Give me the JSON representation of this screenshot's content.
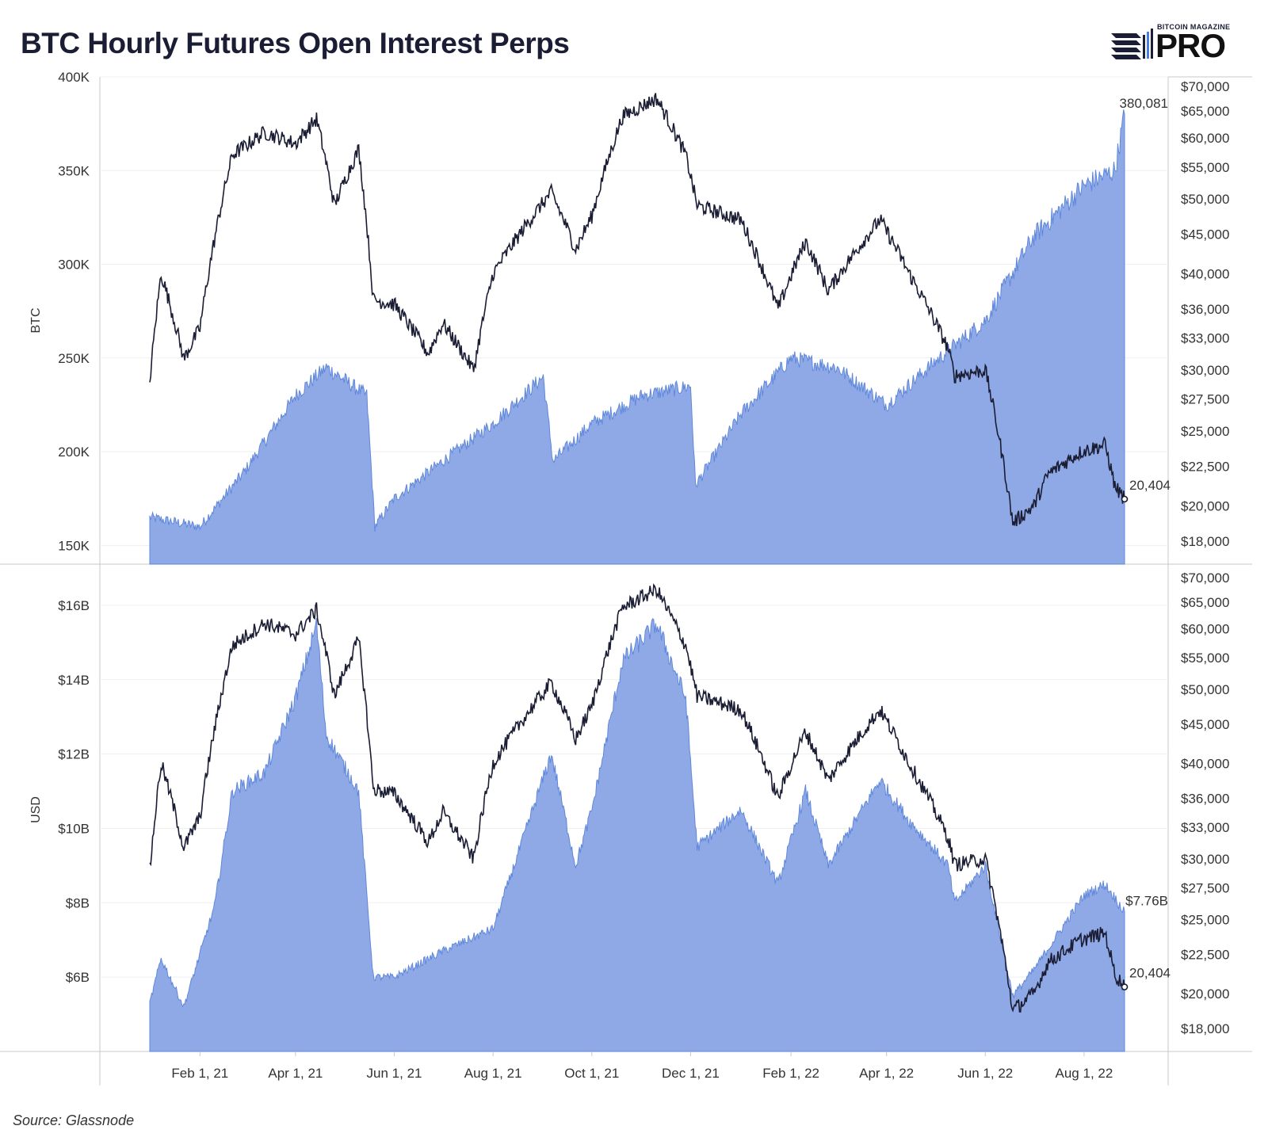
{
  "title": "BTC Hourly Futures Open Interest Perps",
  "logo": {
    "small": "BITCOIN MAGAZINE",
    "big": "PRO"
  },
  "source": "Source: Glassnode",
  "colors": {
    "fill": "#8fa9e6",
    "fill_edge": "#5f87db",
    "price_line": "#1a1d33",
    "accent": "#4a7fe0"
  },
  "chart_data": [
    {
      "type": "area",
      "panel": "top",
      "ylabel": "BTC",
      "ylim": [
        140000,
        400000
      ],
      "yticks": [
        "150K",
        "200K",
        "250K",
        "300K",
        "350K",
        "400K"
      ],
      "ytick_values": [
        150000,
        200000,
        250000,
        300000,
        350000,
        400000
      ],
      "x_date_range": [
        "2021-01-01",
        "2022-08-26"
      ],
      "series": [
        {
          "metric": "open_interest_btc",
          "x": [
            "2021-01-01",
            "2021-02-01",
            "2021-03-01",
            "2021-04-01",
            "2021-04-20",
            "2021-05-15",
            "2021-05-20",
            "2021-06-01",
            "2021-07-01",
            "2021-08-01",
            "2021-09-01",
            "2021-09-07",
            "2021-10-01",
            "2021-11-01",
            "2021-12-01",
            "2021-12-04",
            "2022-01-01",
            "2022-02-01",
            "2022-03-01",
            "2022-04-01",
            "2022-05-01",
            "2022-06-01",
            "2022-07-01",
            "2022-08-01",
            "2022-08-20",
            "2022-08-26"
          ],
          "values": [
            165000,
            160000,
            190000,
            230000,
            245000,
            230000,
            160000,
            175000,
            195000,
            215000,
            240000,
            195000,
            215000,
            230000,
            235000,
            182000,
            220000,
            250000,
            245000,
            225000,
            248000,
            270000,
            315000,
            342000,
            350000,
            380081
          ],
          "end_label": "380,081"
        },
        {
          "metric": "btc_price_usd",
          "y_axis": "right",
          "x": [
            "2021-01-01",
            "2021-01-08",
            "2021-01-22",
            "2021-02-01",
            "2021-02-21",
            "2021-03-13",
            "2021-04-01",
            "2021-04-14",
            "2021-04-25",
            "2021-05-10",
            "2021-05-19",
            "2021-06-01",
            "2021-06-22",
            "2021-07-01",
            "2021-07-20",
            "2021-08-01",
            "2021-09-06",
            "2021-09-21",
            "2021-10-01",
            "2021-10-20",
            "2021-11-10",
            "2021-11-28",
            "2021-12-05",
            "2022-01-01",
            "2022-01-24",
            "2022-02-10",
            "2022-02-24",
            "2022-03-28",
            "2022-04-15",
            "2022-05-09",
            "2022-05-13",
            "2022-06-01",
            "2022-06-18",
            "2022-07-01",
            "2022-07-10",
            "2022-07-30",
            "2022-08-14",
            "2022-08-20",
            "2022-08-26"
          ],
          "values": [
            29000,
            40000,
            31000,
            34000,
            57000,
            61000,
            59000,
            63500,
            49000,
            58000,
            37000,
            36500,
            31500,
            34500,
            30000,
            40000,
            51000,
            43000,
            47500,
            64000,
            67500,
            57000,
            49000,
            47000,
            36000,
            44000,
            38000,
            47000,
            40000,
            32000,
            29500,
            30000,
            19000,
            20000,
            22000,
            23500,
            24000,
            21200,
            20404
          ],
          "end_label": "20,404"
        }
      ],
      "right_yticks": [
        "$70,000",
        "$65,000",
        "$60,000",
        "$55,000",
        "$50,000",
        "$45,000",
        "$40,000",
        "$36,000",
        "$33,000",
        "$30,000",
        "$27,500",
        "$25,000",
        "$22,500",
        "$20,000",
        "$18,000"
      ],
      "right_ytick_values": [
        70000,
        65000,
        60000,
        55000,
        50000,
        45000,
        40000,
        36000,
        33000,
        30000,
        27500,
        25000,
        22500,
        20000,
        18000
      ],
      "right_ylim": [
        16800,
        72000
      ],
      "right_scale": "log"
    },
    {
      "type": "area",
      "panel": "bottom",
      "ylabel": "USD",
      "ylim": [
        4000000000,
        17000000000
      ],
      "yticks": [
        "$6B",
        "$8B",
        "$10B",
        "$12B",
        "$14B",
        "$16B"
      ],
      "ytick_values": [
        6000000000,
        8000000000,
        10000000000,
        12000000000,
        14000000000,
        16000000000
      ],
      "x_date_range": [
        "2021-01-01",
        "2022-08-26"
      ],
      "series": [
        {
          "metric": "open_interest_usd",
          "x": [
            "2021-01-01",
            "2021-01-08",
            "2021-01-22",
            "2021-02-10",
            "2021-02-21",
            "2021-03-13",
            "2021-04-01",
            "2021-04-14",
            "2021-04-20",
            "2021-05-10",
            "2021-05-19",
            "2021-06-01",
            "2021-07-01",
            "2021-08-01",
            "2021-09-06",
            "2021-09-21",
            "2021-10-01",
            "2021-10-20",
            "2021-11-10",
            "2021-11-28",
            "2021-12-05",
            "2022-01-01",
            "2022-01-24",
            "2022-02-10",
            "2022-02-24",
            "2022-03-28",
            "2022-04-15",
            "2022-05-09",
            "2022-05-13",
            "2022-06-01",
            "2022-06-18",
            "2022-07-01",
            "2022-08-01",
            "2022-08-14",
            "2022-08-26"
          ],
          "values": [
            5300000000,
            6500000000,
            5200000000,
            7900000000,
            11000000000,
            11500000000,
            13500000000,
            15500000000,
            12500000000,
            11000000000,
            6000000000,
            6000000000,
            6700000000,
            7300000000,
            12000000000,
            9000000000,
            10500000000,
            14500000000,
            15500000000,
            13500000000,
            9500000000,
            10500000000,
            8500000000,
            11000000000,
            9000000000,
            11300000000,
            10200000000,
            9000000000,
            8000000000,
            9000000000,
            5500000000,
            6200000000,
            8200000000,
            8500000000,
            7760000000
          ],
          "end_label": "$7.76B"
        },
        {
          "metric": "btc_price_usd",
          "y_axis": "right",
          "x": [
            "2021-01-01",
            "2021-01-08",
            "2021-01-22",
            "2021-02-01",
            "2021-02-21",
            "2021-03-13",
            "2021-04-01",
            "2021-04-14",
            "2021-04-25",
            "2021-05-10",
            "2021-05-19",
            "2021-06-01",
            "2021-06-22",
            "2021-07-01",
            "2021-07-20",
            "2021-08-01",
            "2021-09-06",
            "2021-09-21",
            "2021-10-01",
            "2021-10-20",
            "2021-11-10",
            "2021-11-28",
            "2021-12-05",
            "2022-01-01",
            "2022-01-24",
            "2022-02-10",
            "2022-02-24",
            "2022-03-28",
            "2022-04-15",
            "2022-05-09",
            "2022-05-13",
            "2022-06-01",
            "2022-06-18",
            "2022-07-01",
            "2022-07-10",
            "2022-07-30",
            "2022-08-14",
            "2022-08-20",
            "2022-08-26"
          ],
          "values": [
            29000,
            40000,
            31000,
            34000,
            57000,
            61000,
            59000,
            63500,
            49000,
            58000,
            37000,
            36500,
            31500,
            34500,
            30000,
            40000,
            51000,
            43000,
            47500,
            64000,
            67500,
            57000,
            49000,
            47000,
            36000,
            44000,
            38000,
            47000,
            40000,
            32000,
            29500,
            30000,
            19000,
            20000,
            22000,
            23500,
            24000,
            21200,
            20404
          ],
          "end_label": "20,404"
        }
      ],
      "right_yticks": [
        "$70,000",
        "$65,000",
        "$60,000",
        "$55,000",
        "$50,000",
        "$45,000",
        "$40,000",
        "$36,000",
        "$33,000",
        "$30,000",
        "$27,500",
        "$25,000",
        "$22,500",
        "$20,000",
        "$18,000"
      ],
      "right_ytick_values": [
        70000,
        65000,
        60000,
        55000,
        50000,
        45000,
        40000,
        36000,
        33000,
        30000,
        27500,
        25000,
        22500,
        20000,
        18000
      ],
      "right_ylim": [
        16800,
        72000
      ],
      "right_scale": "log"
    }
  ],
  "x_axis": {
    "ticks": [
      "Feb 1, 21",
      "Apr 1, 21",
      "Jun 1, 21",
      "Aug 1, 21",
      "Oct 1, 21",
      "Dec 1, 21",
      "Feb 1, 22",
      "Apr 1, 22",
      "Jun 1, 22",
      "Aug 1, 22"
    ],
    "tick_dates": [
      "2021-02-01",
      "2021-04-01",
      "2021-06-01",
      "2021-08-01",
      "2021-10-01",
      "2021-12-01",
      "2022-02-01",
      "2022-04-01",
      "2022-06-01",
      "2022-08-01"
    ]
  }
}
